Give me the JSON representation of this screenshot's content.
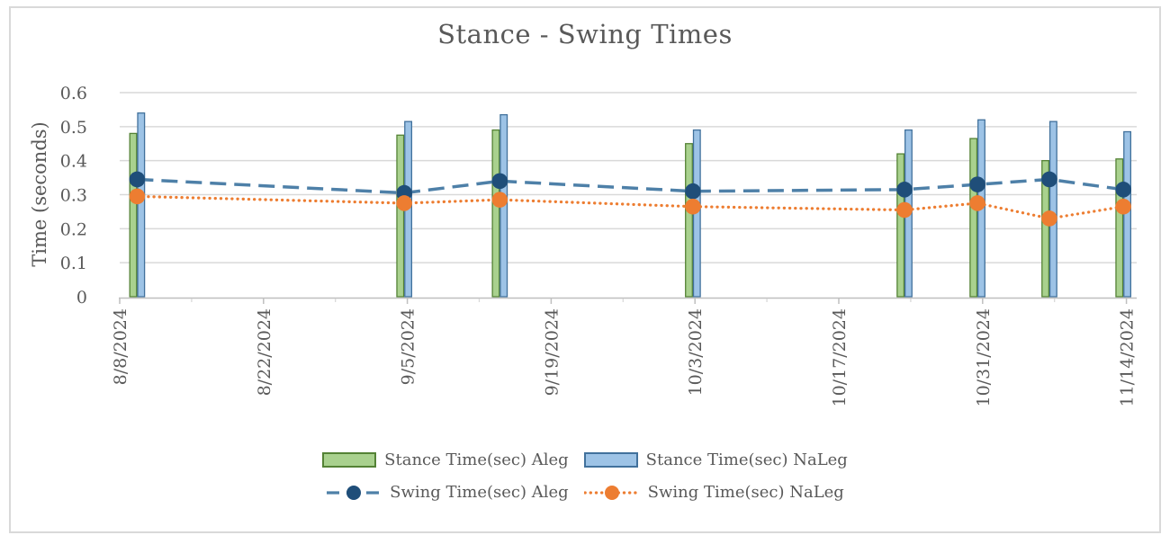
{
  "chart_data": {
    "type": "combo-bar-line",
    "title": "Stance - Swing Times",
    "ylabel": "Time (seconds)",
    "ylim": [
      0,
      0.6
    ],
    "yticks": [
      0,
      0.1,
      0.2,
      0.3,
      0.4,
      0.5,
      0.6
    ],
    "grid": "horizontal",
    "legend_position": "bottom",
    "x_axis": {
      "type": "date",
      "axis_start": "8/8/2024",
      "axis_days": 99,
      "major_tick_days": 14,
      "minor_tick_days": 7,
      "tick_labels": [
        "8/8/2024",
        "8/22/2024",
        "9/5/2024",
        "9/19/2024",
        "10/3/2024",
        "10/17/2024",
        "10/31/2024",
        "11/14/2024"
      ]
    },
    "series": [
      {
        "name": "Stance Time(sec) Aleg",
        "type": "bar",
        "key": "stance_aleg",
        "fill": "#A9D18E",
        "border": "#548235"
      },
      {
        "name": "Stance Time(sec) NaLeg",
        "type": "bar",
        "key": "stance_naleg",
        "fill": "#9DC3E6",
        "border": "#41719C"
      },
      {
        "name": "Swing Time(sec) Aleg",
        "type": "line",
        "key": "swing_aleg",
        "color": "#4E80A8",
        "marker": "#1F4E79",
        "dash": "dash"
      },
      {
        "name": "Swing Time(sec) NaLeg",
        "type": "line",
        "key": "swing_naleg",
        "color": "#ED7D31",
        "marker": "#ED7D31",
        "dash": "dot"
      }
    ],
    "points": [
      {
        "date_est": "8/10/2024",
        "day": 1.7,
        "stance_aleg": 0.48,
        "stance_naleg": 0.54,
        "swing_aleg": 0.345,
        "swing_naleg": 0.295
      },
      {
        "date_est": "9/5/2024",
        "day": 27.7,
        "stance_aleg": 0.475,
        "stance_naleg": 0.515,
        "swing_aleg": 0.305,
        "swing_naleg": 0.275
      },
      {
        "date_est": "9/14/2024",
        "day": 37.0,
        "stance_aleg": 0.49,
        "stance_naleg": 0.535,
        "swing_aleg": 0.34,
        "swing_naleg": 0.285
      },
      {
        "date_est": "10/3/2024",
        "day": 55.8,
        "stance_aleg": 0.45,
        "stance_naleg": 0.49,
        "swing_aleg": 0.31,
        "swing_naleg": 0.265
      },
      {
        "date_est": "10/23/2024",
        "day": 76.4,
        "stance_aleg": 0.42,
        "stance_naleg": 0.49,
        "swing_aleg": 0.315,
        "swing_naleg": 0.255
      },
      {
        "date_est": "10/30/2024",
        "day": 83.5,
        "stance_aleg": 0.465,
        "stance_naleg": 0.52,
        "swing_aleg": 0.33,
        "swing_naleg": 0.275
      },
      {
        "date_est": "11/6/2024",
        "day": 90.5,
        "stance_aleg": 0.4,
        "stance_naleg": 0.515,
        "swing_aleg": 0.345,
        "swing_naleg": 0.23
      },
      {
        "date_est": "11/13/2024",
        "day": 97.7,
        "stance_aleg": 0.405,
        "stance_naleg": 0.485,
        "swing_aleg": 0.315,
        "swing_naleg": 0.265
      }
    ],
    "colors": {
      "text": "#595959",
      "gridline": "#D9D9D9",
      "axis_line": "#BFBFBF",
      "background": "#FFFFFF",
      "frame_border": "#D9D9D9"
    }
  }
}
